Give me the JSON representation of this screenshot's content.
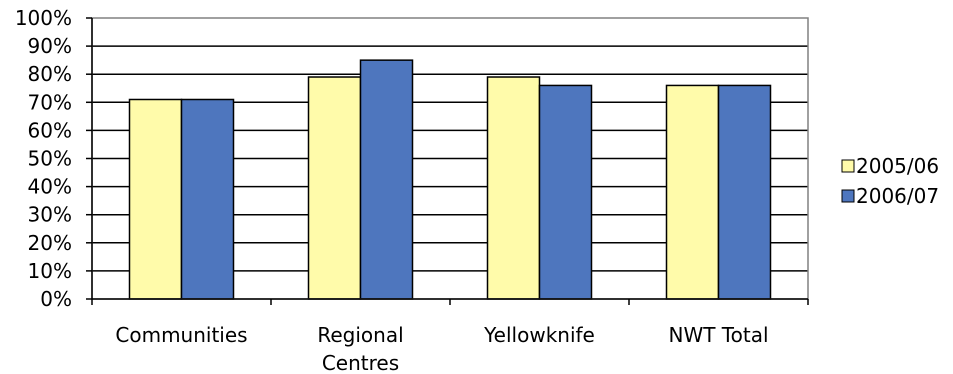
{
  "chart_data": {
    "type": "bar",
    "categories": [
      "Communities",
      "Regional Centres",
      "Yellowknife",
      "NWT Total"
    ],
    "series": [
      {
        "name": "2005/06",
        "values": [
          71,
          79,
          79,
          76
        ],
        "color": "#FFFBAA"
      },
      {
        "name": "2006/07",
        "values": [
          71,
          85,
          76,
          76
        ],
        "color": "#4E76BE"
      }
    ],
    "ylim": [
      0,
      100
    ],
    "y_ticks": [
      "0%",
      "10%",
      "20%",
      "30%",
      "40%",
      "50%",
      "60%",
      "70%",
      "80%",
      "90%",
      "100%"
    ],
    "grid": true,
    "legend_position": "right",
    "title": "",
    "xlabel": "",
    "ylabel": ""
  }
}
